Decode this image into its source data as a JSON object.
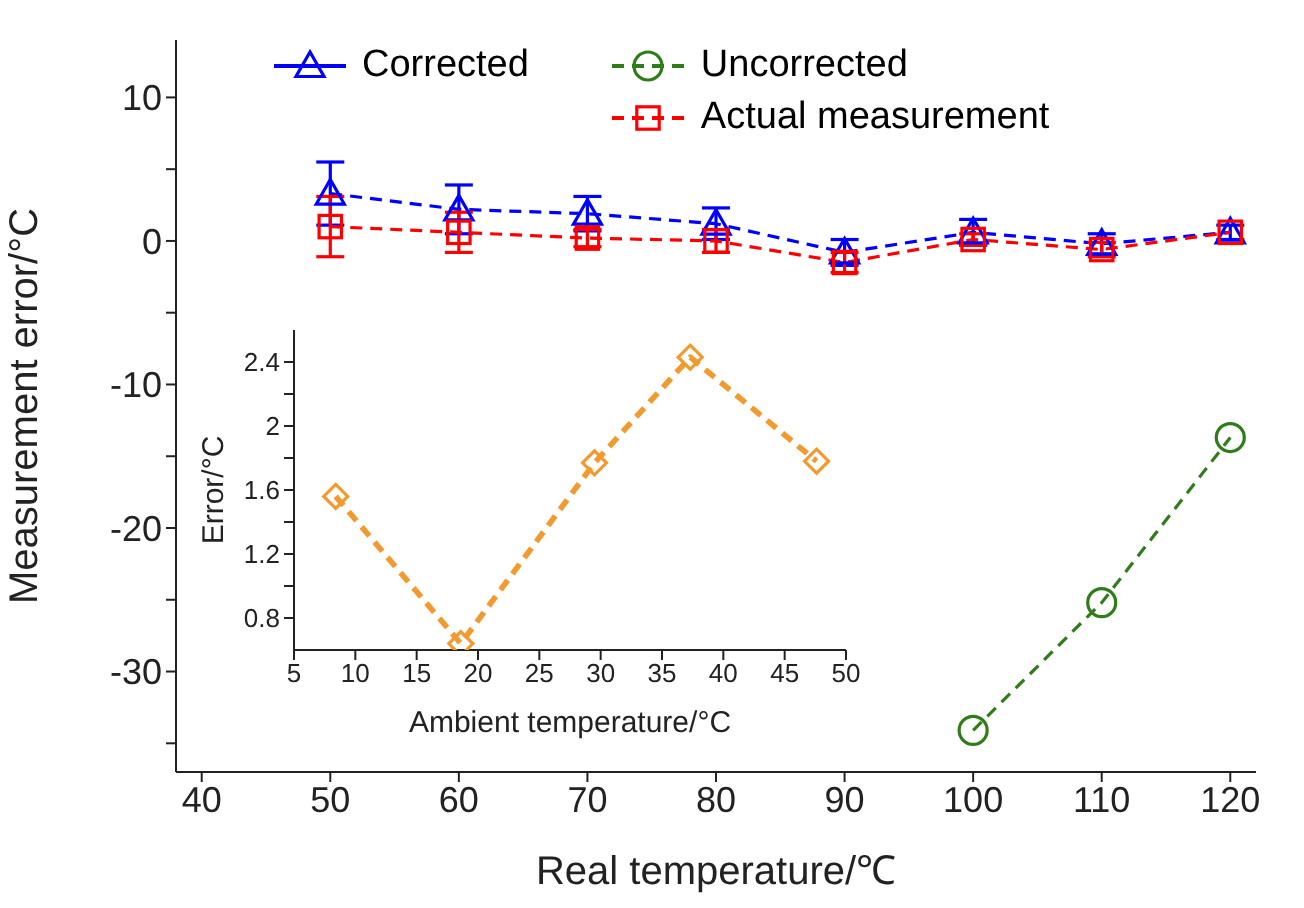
{
  "chart_data": [
    {
      "type": "line",
      "xlabel": "Real temperature/℃",
      "ylabel": "Measurement error/°C",
      "xlim": [
        38,
        122
      ],
      "ylim": [
        -37,
        14
      ],
      "xticks": [
        40,
        50,
        60,
        70,
        80,
        90,
        100,
        110,
        120
      ],
      "yticks": [
        {
          "value": -35,
          "label": null
        },
        -30,
        {
          "value": -25,
          "label": null
        },
        -20,
        {
          "value": -15,
          "label": null
        },
        -10,
        {
          "value": -5,
          "label": null
        },
        0,
        {
          "value": 5,
          "label": null
        },
        10
      ],
      "grid": false,
      "legend": "top",
      "line_style": "dashed",
      "series": [
        {
          "name": "Corrected",
          "color": "#0000ff",
          "marker": "triangle",
          "x": [
            50,
            60,
            70,
            80,
            90,
            100,
            110,
            120
          ],
          "values": [
            3.3,
            2.2,
            1.9,
            1.2,
            -0.8,
            0.6,
            -0.2,
            0.6
          ],
          "errors": [
            2.2,
            1.7,
            1.2,
            1.1,
            0.9,
            0.9,
            0.7,
            0.5
          ]
        },
        {
          "name": "Uncorrected",
          "color": "#2e7d18",
          "marker": "circle",
          "x": [
            100,
            110,
            120
          ],
          "values": [
            -34.1,
            -25.2,
            -13.7
          ]
        },
        {
          "name": "Actual measurement",
          "color": "#ff0000",
          "marker": "square",
          "x": [
            50,
            60,
            70,
            80,
            90,
            100,
            110,
            120
          ],
          "values": [
            1.0,
            0.6,
            0.2,
            0.0,
            -1.5,
            0.1,
            -0.6,
            0.6
          ],
          "errors": [
            2.1,
            1.4,
            0.6,
            0.8,
            0.7,
            0.4,
            0.5,
            null
          ]
        }
      ]
    },
    {
      "type": "line",
      "xlabel": "Ambient temperature/°C",
      "ylabel": "Error/°C",
      "xlim": [
        5,
        50
      ],
      "ylim": [
        0.6,
        2.6
      ],
      "xticks": [
        5,
        10,
        15,
        20,
        25,
        30,
        35,
        40,
        45,
        50
      ],
      "yticks": [
        0.8,
        {
          "value": 1.0,
          "label": null
        },
        1.2,
        {
          "value": 1.4,
          "label": null
        },
        1.6,
        {
          "value": 1.8,
          "label": null
        },
        2,
        {
          "value": 2.2,
          "label": null
        },
        2.4
      ],
      "grid": false,
      "line_style": "dashed",
      "series": [
        {
          "color": "#f39a2e",
          "marker": "diamond",
          "x": [
            8.4,
            18.6,
            29.5,
            37.3,
            47.6
          ],
          "values": [
            1.56,
            0.64,
            1.77,
            2.43,
            1.78
          ]
        }
      ]
    }
  ]
}
